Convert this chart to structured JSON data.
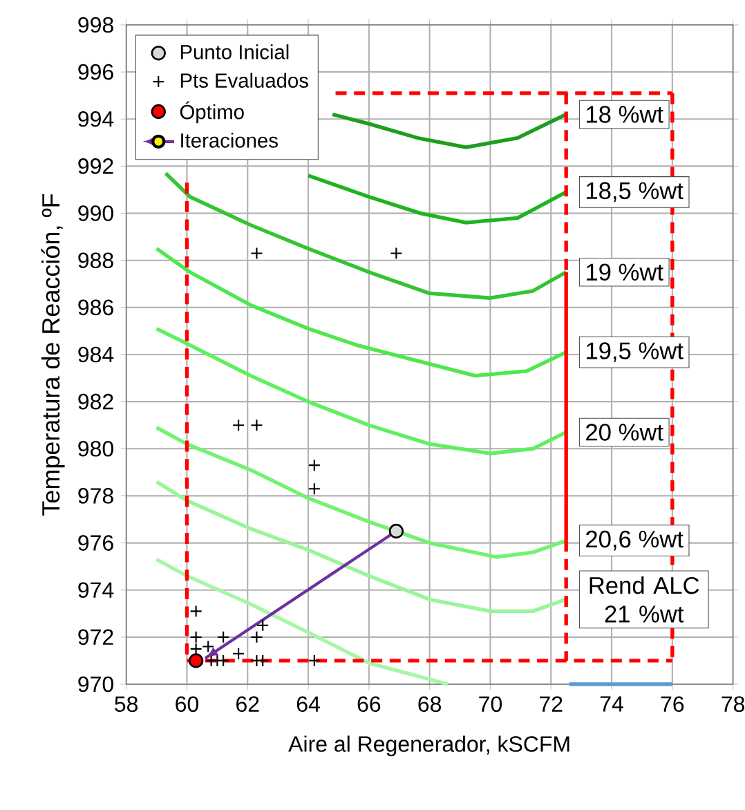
{
  "chart_data": {
    "type": "line",
    "xlabel": "Aire al Regenerador, kSCFM",
    "ylabel": "Temperatura de Reacción, ºF",
    "xlim": [
      58,
      78
    ],
    "xticks": [
      58,
      60,
      62,
      64,
      66,
      68,
      70,
      72,
      74,
      76,
      78
    ],
    "ylim": [
      970,
      998
    ],
    "yticks": [
      970,
      972,
      974,
      976,
      978,
      980,
      982,
      984,
      986,
      988,
      990,
      992,
      994,
      996,
      998
    ],
    "grid": true,
    "legend": "top left",
    "series": [
      {
        "name": "18 %wt",
        "color": "#1e9e1e",
        "x": [
          64.8,
          66.0,
          67.6,
          69.2,
          70.9,
          72.5
        ],
        "values": [
          994.2,
          993.8,
          993.2,
          992.8,
          993.2,
          994.2
        ]
      },
      {
        "name": "18,5 %wt",
        "color": "#1fb41f",
        "x": [
          64.0,
          66.0,
          67.7,
          69.2,
          70.9,
          72.5
        ],
        "values": [
          991.6,
          990.7,
          990.0,
          989.6,
          989.8,
          990.9
        ]
      },
      {
        "name": "19 %wt",
        "color": "#33c433",
        "x": [
          59.3,
          60.1,
          62.1,
          64.0,
          66.0,
          68.0,
          70.0,
          71.4,
          72.5
        ],
        "values": [
          991.7,
          990.7,
          989.5,
          988.5,
          987.5,
          986.6,
          986.4,
          986.7,
          987.5
        ]
      },
      {
        "name": "19,5 %wt",
        "color": "#4ee84e",
        "x": [
          59.0,
          60.1,
          62.1,
          64.0,
          65.6,
          68.0,
          69.5,
          71.2,
          72.5
        ],
        "values": [
          988.5,
          987.5,
          986.1,
          985.1,
          984.4,
          983.6,
          983.1,
          983.3,
          984.1
        ]
      },
      {
        "name": "20 %wt",
        "color": "#5ef05e",
        "x": [
          59.0,
          60.1,
          62.1,
          64.0,
          66.0,
          68.0,
          70.0,
          71.4,
          72.5
        ],
        "values": [
          985.1,
          984.4,
          983.1,
          982.0,
          981.0,
          980.2,
          979.8,
          980.0,
          980.7
        ]
      },
      {
        "name": "20,6 %wt",
        "color": "#72f272",
        "x": [
          59.0,
          60.0,
          62.1,
          64.0,
          66.0,
          68.0,
          70.2,
          71.4,
          72.5
        ],
        "values": [
          980.9,
          980.2,
          979.1,
          977.9,
          976.9,
          976.0,
          975.4,
          975.6,
          976.1
        ]
      },
      {
        "name": "Rend ALC 21 %wt",
        "color": "#99f599",
        "x": [
          59.0,
          60.0,
          62.1,
          64.0,
          66.0,
          68.0,
          70.0,
          71.4,
          72.5
        ],
        "values": [
          978.6,
          977.8,
          976.6,
          975.7,
          974.6,
          973.6,
          973.1,
          973.1,
          973.6
        ]
      },
      {
        "color": "#a8f5a8",
        "x": [
          59.0,
          60.0,
          62.1,
          64.0,
          66.0,
          68.6
        ],
        "values": [
          975.3,
          974.6,
          973.4,
          972.2,
          970.9,
          970.0
        ]
      },
      {
        "color": "#5b9bd5",
        "x": [
          72.6,
          76.0
        ],
        "values": [
          970.0,
          970.0
        ]
      },
      {
        "color": "#ff0000",
        "line_style": "dashed",
        "x": [
          60.0,
          60.0
        ],
        "values": [
          991.3,
          971.0
        ]
      },
      {
        "color": "#ff0000",
        "line_style": "dashed",
        "x": [
          64.9,
          76.0
        ],
        "values": [
          995.1,
          995.1
        ]
      },
      {
        "color": "#ff0000",
        "line_style": "dashed",
        "x": [
          60.0,
          76.0
        ],
        "values": [
          971.0,
          971.0
        ]
      },
      {
        "color": "#ff0000",
        "line_style": "dashed",
        "x": [
          76.0,
          76.0
        ],
        "values": [
          995.1,
          971.0
        ]
      },
      {
        "color": "#ff0000",
        "line_style": "dashed",
        "x": [
          72.5,
          72.5
        ],
        "values": [
          995.1,
          987.5
        ]
      },
      {
        "color": "#ff0000",
        "line_style": "dashed",
        "x": [
          72.5,
          72.5
        ],
        "values": [
          976.1,
          971.0
        ]
      },
      {
        "color": "#ff0000",
        "x": [
          72.5,
          72.5
        ],
        "values": [
          976.1,
          987.5
        ]
      },
      {
        "name": "Punto Inicial",
        "type": "scatter",
        "marker": "circle",
        "color": "#d9d9d9",
        "x": [
          66.9
        ],
        "values": [
          976.5
        ]
      },
      {
        "name": "Pts Evaluados",
        "type": "scatter",
        "marker": "cross",
        "color": "#000000",
        "x": [
          62.3,
          66.9,
          61.7,
          62.3,
          64.2,
          64.2,
          60.3,
          60.3,
          61.2,
          62.3,
          62.5,
          61.7,
          60.3,
          60.8,
          61.0,
          61.2,
          62.3,
          62.5,
          64.2,
          60.7
        ],
        "values": [
          988.3,
          988.3,
          981.0,
          981.0,
          979.3,
          978.3,
          973.1,
          972.0,
          972.0,
          972.0,
          972.5,
          971.3,
          971.5,
          971.0,
          971.0,
          971.0,
          971.0,
          971.0,
          971.0,
          971.6
        ]
      },
      {
        "name": "Óptimo",
        "type": "scatter",
        "marker": "circle",
        "color": "#ff0000",
        "x": [
          60.3
        ],
        "values": [
          971.0
        ]
      },
      {
        "name": "Iteraciones",
        "type": "line",
        "color": "#7030a0",
        "x": [
          66.9,
          60.6
        ],
        "values": [
          976.5,
          971.1
        ]
      }
    ]
  }
}
